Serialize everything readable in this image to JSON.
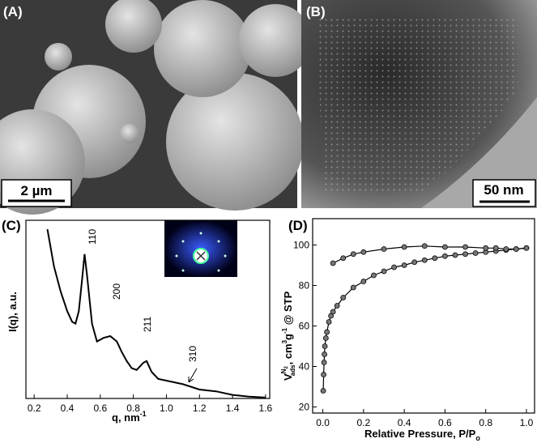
{
  "images": {
    "a": {
      "label": "(A)",
      "scale_bar": "2 µm"
    },
    "b": {
      "label": "(B)",
      "scale_bar": "50 nm"
    }
  },
  "chart_data": [
    {
      "type": "line",
      "panel": "(C)",
      "xlabel": [
        "q, nm",
        "-1"
      ],
      "ylabel": "I(q), a.u.",
      "annotations": [
        "110",
        "200",
        "211",
        "310"
      ],
      "x": [
        0.28,
        0.32,
        0.36,
        0.4,
        0.43,
        0.45,
        0.47,
        0.49,
        0.505,
        0.52,
        0.55,
        0.58,
        0.62,
        0.66,
        0.7,
        0.73,
        0.76,
        0.79,
        0.82,
        0.86,
        0.88,
        0.91,
        0.95,
        1.0,
        1.1,
        1.2,
        1.3,
        1.4,
        1.5,
        1.6
      ],
      "values": [
        95,
        74,
        60,
        49,
        43,
        42,
        49,
        67,
        81,
        69,
        42,
        32,
        34,
        35,
        32,
        26,
        21,
        17,
        16,
        20,
        21,
        15,
        11,
        10,
        8,
        5,
        4,
        2,
        1,
        0.5
      ],
      "color": "#000000",
      "xlim": [
        0.15,
        1.625
      ],
      "ylim": [
        0,
        100
      ],
      "xticks": [
        0.2,
        0.4,
        0.6,
        0.8,
        {
          "value": 1,
          "label": "1.0"
        },
        1.2,
        1.4,
        1.6
      ]
    },
    {
      "type": "line",
      "panel": "(D)",
      "xlabel": [
        "Relative Pressure, P/P",
        "o"
      ],
      "ylabel": [
        "V",
        "N",
        "2",
        "ads",
        ", cm",
        "3",
        "g",
        "-1",
        " @ STP"
      ],
      "markers": true,
      "series": [
        {
          "color": "#000000",
          "x": [
            0.002,
            0.004,
            0.006,
            0.008,
            0.01,
            0.015,
            0.02,
            0.03,
            0.04,
            0.05,
            0.07,
            0.1,
            0.15,
            0.2,
            0.25,
            0.3,
            0.35,
            0.4,
            0.45,
            0.5,
            0.55,
            0.6,
            0.65,
            0.7,
            0.75,
            0.8,
            0.85,
            0.9,
            0.95,
            1.0
          ],
          "values": [
            28,
            36,
            42,
            46,
            50,
            54,
            57,
            62,
            65,
            67,
            70,
            74,
            79,
            82,
            85,
            87,
            89,
            90,
            91.5,
            92.5,
            93.5,
            94.5,
            95,
            95.5,
            96,
            96.5,
            97,
            97.5,
            98,
            98.5
          ]
        },
        {
          "color": "#000000",
          "x": [
            1.0,
            0.95,
            0.9,
            0.85,
            0.8,
            0.7,
            0.6,
            0.5,
            0.4,
            0.3,
            0.2,
            0.15,
            0.1,
            0.05
          ],
          "values": [
            98.5,
            98,
            98,
            98.5,
            98.5,
            99,
            99,
            99.5,
            99,
            98,
            96.5,
            95.5,
            93.5,
            91
          ]
        }
      ],
      "xlim": [
        -0.05,
        1.04
      ],
      "ylim": [
        17,
        113
      ],
      "xticks": [
        {
          "value": 0,
          "label": "0.0"
        },
        0.2,
        0.4,
        0.6,
        0.8,
        {
          "value": 1,
          "label": "1.0"
        }
      ],
      "yticks": [
        20,
        40,
        60,
        80,
        100
      ]
    }
  ]
}
